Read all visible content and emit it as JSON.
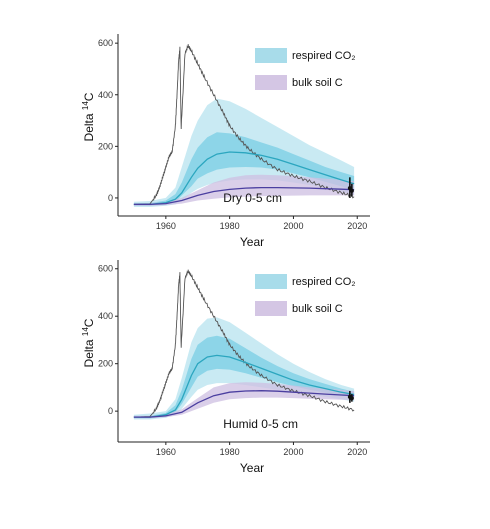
{
  "chart_data": [
    {
      "type": "line",
      "annotation": "Dry  0-5 cm",
      "xlabel": "Year",
      "ylabel_main": "Delta ",
      "ylabel_sup": "14",
      "ylabel_end": "C",
      "xlim": [
        1945,
        2024
      ],
      "ylim": [
        -70,
        620
      ],
      "xticks": [
        1960,
        1980,
        2000,
        2020
      ],
      "yticks": [
        0,
        200,
        400,
        600
      ],
      "grid": false,
      "legend_position": "top-right",
      "legend": [
        {
          "label": "respired CO₂",
          "color": "#a8dcea"
        },
        {
          "label": "bulk soil C",
          "color": "#d4c6e4"
        }
      ],
      "atmosphere": {
        "color": "#555555",
        "x": [
          1950,
          1955,
          1957,
          1958,
          1959,
          1960,
          1961,
          1962,
          1963,
          1963.5,
          1964,
          1964.4,
          1964.8,
          1966,
          1967,
          1968,
          1970,
          1972,
          1975,
          1978,
          1980,
          1983,
          1986,
          1990,
          1995,
          2000,
          2005,
          2010,
          2015,
          2019
        ],
        "y": [
          -25,
          -23,
          10,
          40,
          80,
          120,
          160,
          180,
          280,
          400,
          530,
          580,
          270,
          560,
          590,
          570,
          520,
          470,
          400,
          330,
          280,
          230,
          190,
          150,
          110,
          85,
          65,
          40,
          20,
          5
        ]
      },
      "respired": {
        "color": "#2ba6bf",
        "x": [
          1950,
          1955,
          1960,
          1963,
          1965,
          1968,
          1970,
          1973,
          1976,
          1980,
          1985,
          1990,
          1995,
          2000,
          2005,
          2010,
          2015,
          2019
        ],
        "mean": [
          -25,
          -25,
          -18,
          -5,
          20,
          80,
          115,
          150,
          170,
          178,
          175,
          165,
          150,
          130,
          110,
          90,
          70,
          55
        ],
        "outer_low": [
          -35,
          -35,
          -30,
          -25,
          -10,
          20,
          35,
          50,
          60,
          68,
          72,
          72,
          68,
          60,
          50,
          40,
          25,
          10
        ],
        "outer_high": [
          -15,
          -12,
          0,
          40,
          120,
          240,
          300,
          360,
          385,
          375,
          345,
          310,
          275,
          240,
          205,
          175,
          145,
          120
        ],
        "inner_low": [
          -30,
          -30,
          -25,
          -15,
          10,
          45,
          75,
          95,
          110,
          118,
          120,
          118,
          110,
          95,
          80,
          62,
          45,
          30
        ],
        "inner_high": [
          -20,
          -20,
          -10,
          15,
          60,
          150,
          195,
          235,
          255,
          250,
          235,
          215,
          195,
          170,
          145,
          120,
          100,
          85
        ]
      },
      "bulk": {
        "color": "#4b3fa0",
        "x": [
          1950,
          1955,
          1960,
          1965,
          1970,
          1975,
          1980,
          1985,
          1990,
          1995,
          2000,
          2005,
          2010,
          2015,
          2019
        ],
        "mean": [
          -25,
          -25,
          -22,
          -10,
          10,
          25,
          33,
          38,
          40,
          40,
          39,
          38,
          36,
          34,
          32
        ],
        "low": [
          -30,
          -30,
          -28,
          -22,
          -10,
          -3,
          2,
          5,
          7,
          8,
          9,
          10,
          10,
          10,
          10
        ],
        "high": [
          -20,
          -20,
          -15,
          0,
          30,
          60,
          78,
          88,
          90,
          88,
          85,
          80,
          75,
          70,
          65
        ]
      },
      "measurements": {
        "x": 2018,
        "points": [
          {
            "y": 38,
            "low": 0,
            "high": 80
          },
          {
            "y": 28,
            "low": 5,
            "high": 55
          }
        ]
      }
    },
    {
      "type": "line",
      "annotation": "Humid  0-5 cm",
      "xlabel": "Year",
      "ylabel_main": "Delta ",
      "ylabel_sup": "14",
      "ylabel_end": "C",
      "xlim": [
        1945,
        2024
      ],
      "ylim": [
        -130,
        620
      ],
      "xticks": [
        1960,
        1980,
        2000,
        2020
      ],
      "yticks": [
        0,
        200,
        400,
        600
      ],
      "grid": false,
      "legend_position": "top-right",
      "legend": [
        {
          "label": "respired CO₂",
          "color": "#a8dcea"
        },
        {
          "label": "bulk soil C",
          "color": "#d4c6e4"
        }
      ],
      "atmosphere": {
        "color": "#555555",
        "x": [
          1950,
          1955,
          1957,
          1958,
          1959,
          1960,
          1961,
          1962,
          1963,
          1963.5,
          1964,
          1964.4,
          1964.8,
          1966,
          1967,
          1968,
          1970,
          1972,
          1975,
          1978,
          1980,
          1983,
          1986,
          1990,
          1995,
          2000,
          2005,
          2010,
          2015,
          2019
        ],
        "y": [
          -25,
          -23,
          10,
          40,
          80,
          120,
          160,
          180,
          280,
          400,
          530,
          580,
          270,
          560,
          590,
          570,
          520,
          470,
          400,
          330,
          280,
          230,
          190,
          150,
          110,
          85,
          65,
          40,
          20,
          5
        ]
      },
      "respired": {
        "color": "#2ba6bf",
        "x": [
          1950,
          1955,
          1960,
          1963,
          1965,
          1968,
          1970,
          1973,
          1976,
          1980,
          1985,
          1990,
          1995,
          2000,
          2005,
          2010,
          2015,
          2019
        ],
        "mean": [
          -25,
          -25,
          -15,
          5,
          50,
          150,
          200,
          228,
          235,
          228,
          205,
          180,
          155,
          130,
          110,
          95,
          80,
          70
        ],
        "outer_low": [
          -35,
          -35,
          -28,
          -15,
          10,
          60,
          90,
          110,
          118,
          118,
          110,
          100,
          90,
          80,
          70,
          60,
          50,
          40
        ],
        "outer_high": [
          -15,
          -10,
          0,
          50,
          140,
          290,
          350,
          390,
          395,
          375,
          330,
          285,
          240,
          200,
          165,
          135,
          110,
          95
        ],
        "inner_low": [
          -30,
          -30,
          -22,
          -5,
          30,
          100,
          145,
          170,
          178,
          175,
          160,
          140,
          122,
          105,
          90,
          78,
          68,
          60
        ],
        "inner_high": [
          -20,
          -20,
          -8,
          25,
          90,
          220,
          280,
          310,
          318,
          305,
          265,
          225,
          190,
          160,
          135,
          115,
          95,
          82
        ]
      },
      "bulk": {
        "color": "#4b3fa0",
        "x": [
          1950,
          1955,
          1960,
          1965,
          1970,
          1975,
          1980,
          1985,
          1990,
          1995,
          2000,
          2005,
          2010,
          2015,
          2019
        ],
        "mean": [
          -25,
          -25,
          -20,
          -5,
          35,
          65,
          80,
          85,
          86,
          84,
          80,
          76,
          72,
          68,
          65
        ],
        "low": [
          -30,
          -30,
          -26,
          -15,
          10,
          35,
          50,
          55,
          57,
          57,
          55,
          52,
          50,
          48,
          46
        ],
        "high": [
          -20,
          -20,
          -12,
          8,
          55,
          100,
          118,
          122,
          120,
          115,
          108,
          100,
          95,
          90,
          85
        ]
      },
      "measurements": {
        "x": 2018,
        "points": [
          {
            "y": 60,
            "low": 35,
            "high": 85
          },
          {
            "y": 55,
            "low": 40,
            "high": 72
          }
        ]
      }
    }
  ]
}
